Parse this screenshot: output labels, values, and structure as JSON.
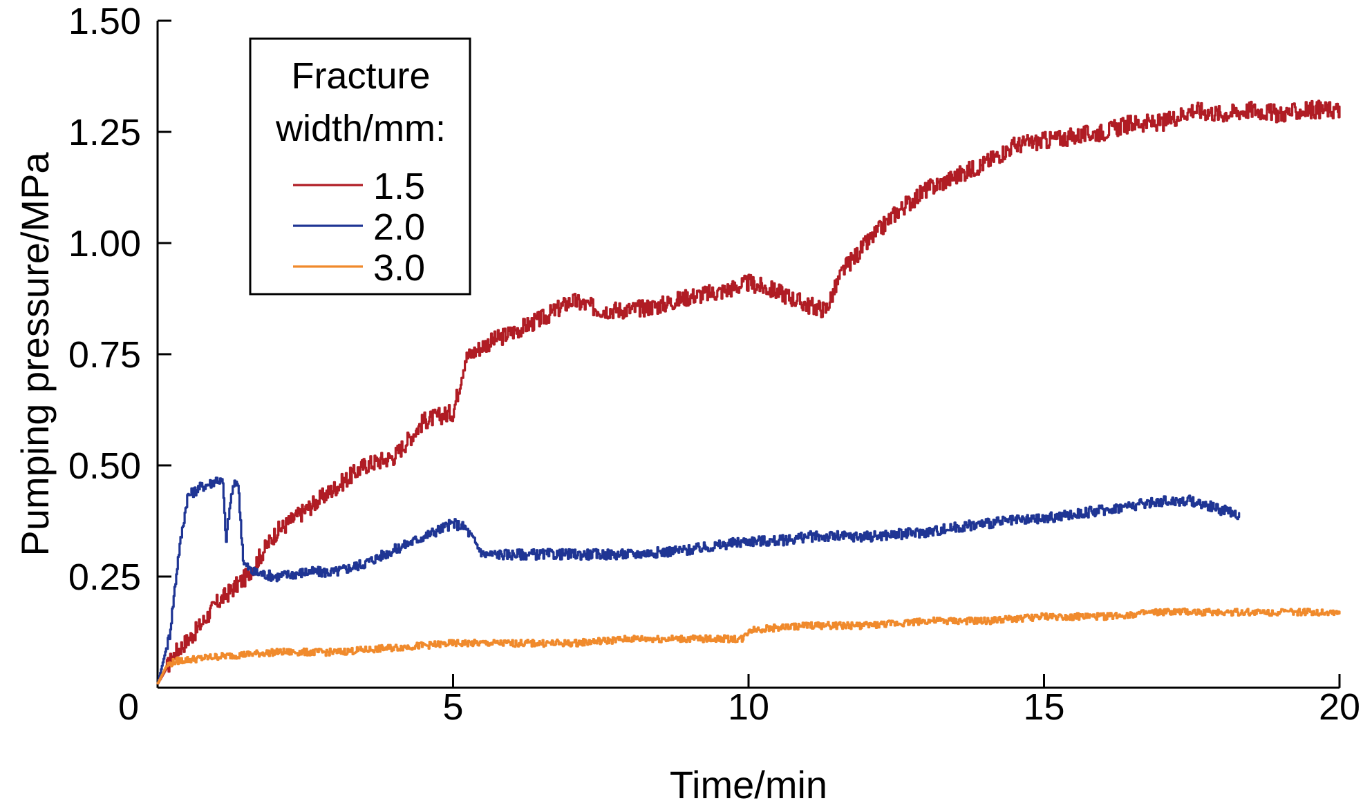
{
  "chart_data": {
    "type": "line",
    "title": "",
    "xlabel": "Time/min",
    "ylabel": "Pumping pressure/MPa",
    "xlim": [
      0,
      20
    ],
    "ylim": [
      0,
      1.5
    ],
    "xticks": [
      0,
      5,
      10,
      15,
      20
    ],
    "xtick_labels": [
      "0",
      "5",
      "10",
      "15",
      "20"
    ],
    "yticks": [
      0.25,
      0.5,
      0.75,
      1.0,
      1.25,
      1.5
    ],
    "ytick_labels": [
      "0.25",
      "0.50",
      "0.75",
      "1.00",
      "1.25",
      "1.50"
    ],
    "grid": false,
    "legend": {
      "title_lines": [
        "Fracture",
        "width/mm:"
      ],
      "placement": "top-left"
    },
    "series": [
      {
        "name": "1.5",
        "color": "#b01c24",
        "points": [
          [
            0,
            0.01
          ],
          [
            0.3,
            0.08
          ],
          [
            0.6,
            0.12
          ],
          [
            1.0,
            0.19
          ],
          [
            1.5,
            0.25
          ],
          [
            2.0,
            0.35
          ],
          [
            2.5,
            0.4
          ],
          [
            3.0,
            0.45
          ],
          [
            3.5,
            0.5
          ],
          [
            4.0,
            0.52
          ],
          [
            4.5,
            0.6
          ],
          [
            5.0,
            0.62
          ],
          [
            5.2,
            0.74
          ],
          [
            5.5,
            0.77
          ],
          [
            6.0,
            0.8
          ],
          [
            6.5,
            0.83
          ],
          [
            7.0,
            0.87
          ],
          [
            7.5,
            0.85
          ],
          [
            8.0,
            0.85
          ],
          [
            8.5,
            0.86
          ],
          [
            9.0,
            0.88
          ],
          [
            9.5,
            0.89
          ],
          [
            10.0,
            0.91
          ],
          [
            10.5,
            0.89
          ],
          [
            11.0,
            0.86
          ],
          [
            11.3,
            0.85
          ],
          [
            11.6,
            0.94
          ],
          [
            12.0,
            1.0
          ],
          [
            12.5,
            1.07
          ],
          [
            13.0,
            1.12
          ],
          [
            13.5,
            1.15
          ],
          [
            14.0,
            1.18
          ],
          [
            14.5,
            1.22
          ],
          [
            15.0,
            1.23
          ],
          [
            15.5,
            1.24
          ],
          [
            16.0,
            1.25
          ],
          [
            16.5,
            1.27
          ],
          [
            17.0,
            1.27
          ],
          [
            17.5,
            1.3
          ],
          [
            18.0,
            1.29
          ],
          [
            18.5,
            1.3
          ],
          [
            19.0,
            1.29
          ],
          [
            19.5,
            1.3
          ],
          [
            20.0,
            1.3
          ]
        ]
      },
      {
        "name": "2.0",
        "color": "#1f3594",
        "points": [
          [
            0,
            0.01
          ],
          [
            0.2,
            0.12
          ],
          [
            0.35,
            0.3
          ],
          [
            0.5,
            0.43
          ],
          [
            0.7,
            0.45
          ],
          [
            0.9,
            0.46
          ],
          [
            1.0,
            0.47
          ],
          [
            1.1,
            0.46
          ],
          [
            1.15,
            0.33
          ],
          [
            1.25,
            0.44
          ],
          [
            1.35,
            0.47
          ],
          [
            1.45,
            0.28
          ],
          [
            1.6,
            0.26
          ],
          [
            2.0,
            0.25
          ],
          [
            2.5,
            0.26
          ],
          [
            3.0,
            0.26
          ],
          [
            3.5,
            0.28
          ],
          [
            4.0,
            0.31
          ],
          [
            4.5,
            0.34
          ],
          [
            5.0,
            0.37
          ],
          [
            5.2,
            0.36
          ],
          [
            5.5,
            0.3
          ],
          [
            6.0,
            0.3
          ],
          [
            7.0,
            0.3
          ],
          [
            8.0,
            0.3
          ],
          [
            9.0,
            0.31
          ],
          [
            10.0,
            0.33
          ],
          [
            10.5,
            0.33
          ],
          [
            11.0,
            0.34
          ],
          [
            12.0,
            0.34
          ],
          [
            13.0,
            0.35
          ],
          [
            14.0,
            0.37
          ],
          [
            15.0,
            0.38
          ],
          [
            16.0,
            0.4
          ],
          [
            17.0,
            0.42
          ],
          [
            17.5,
            0.42
          ],
          [
            18.0,
            0.4
          ],
          [
            18.3,
            0.39
          ]
        ]
      },
      {
        "name": "3.0",
        "color": "#f08a2c",
        "points": [
          [
            0,
            0.01
          ],
          [
            0.15,
            0.05
          ],
          [
            0.3,
            0.06
          ],
          [
            1.0,
            0.07
          ],
          [
            2.0,
            0.08
          ],
          [
            3.0,
            0.08
          ],
          [
            4.0,
            0.09
          ],
          [
            5.0,
            0.1
          ],
          [
            6.0,
            0.1
          ],
          [
            7.0,
            0.1
          ],
          [
            8.0,
            0.11
          ],
          [
            9.0,
            0.11
          ],
          [
            9.9,
            0.11
          ],
          [
            10.0,
            0.13
          ],
          [
            11.0,
            0.14
          ],
          [
            12.0,
            0.14
          ],
          [
            13.0,
            0.15
          ],
          [
            14.0,
            0.15
          ],
          [
            15.0,
            0.16
          ],
          [
            16.0,
            0.16
          ],
          [
            17.0,
            0.17
          ],
          [
            18.0,
            0.17
          ],
          [
            19.0,
            0.17
          ],
          [
            20.0,
            0.17
          ]
        ]
      }
    ]
  }
}
